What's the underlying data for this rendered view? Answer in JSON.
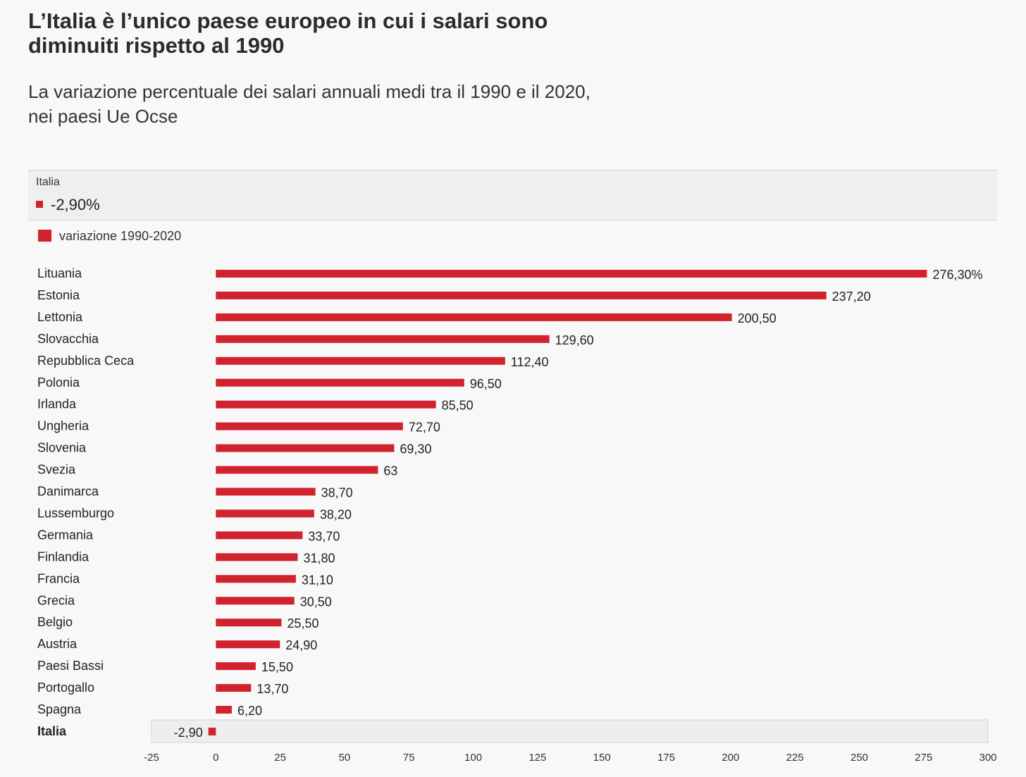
{
  "title": "L’Italia è l’unico paese europeo in cui i salari sono diminuiti rispetto al 1990",
  "subtitle": "La variazione percentuale dei salari annuali medi tra il 1990 e il 2020, nei paesi Ue Ocse",
  "tooltip": {
    "label": "Italia",
    "value": "-2,90%"
  },
  "legend": {
    "label": "variazione 1990-2020"
  },
  "colors": {
    "bar": "#d0232d",
    "background": "#f8f8f8",
    "highlight_band": "#eeeeee"
  },
  "chart_data": {
    "type": "bar",
    "orientation": "horizontal",
    "categories": [
      "Lituania",
      "Estonia",
      "Lettonia",
      "Slovacchia",
      "Repubblica Ceca",
      "Polonia",
      "Irlanda",
      "Ungheria",
      "Slovenia",
      "Svezia",
      "Danimarca",
      "Lussemburgo",
      "Germania",
      "Finlandia",
      "Francia",
      "Grecia",
      "Belgio",
      "Austria",
      "Paesi Bassi",
      "Portogallo",
      "Spagna",
      "Italia"
    ],
    "values": [
      276.3,
      237.2,
      200.5,
      129.6,
      112.4,
      96.5,
      85.5,
      72.7,
      69.3,
      63,
      38.7,
      38.2,
      33.7,
      31.8,
      31.1,
      30.5,
      25.5,
      24.9,
      15.5,
      13.7,
      6.2,
      -2.9
    ],
    "value_labels": [
      "276,30%",
      "237,20",
      "200,50",
      "129,60",
      "112,40",
      "96,50",
      "85,50",
      "72,70",
      "69,30",
      "63",
      "38,70",
      "38,20",
      "33,70",
      "31,80",
      "31,10",
      "30,50",
      "25,50",
      "24,90",
      "15,50",
      "13,70",
      "6,20",
      "-2,90"
    ],
    "highlight": "Italia",
    "xlim": [
      -25,
      300
    ],
    "xticks": [
      -25,
      0,
      25,
      50,
      75,
      100,
      125,
      150,
      175,
      200,
      225,
      250,
      275,
      300
    ],
    "xtick_labels": [
      "-25",
      "0",
      "25",
      "50",
      "75",
      "100",
      "125",
      "150",
      "175",
      "200",
      "225",
      "250",
      "275",
      "300"
    ],
    "series": [
      {
        "name": "variazione 1990-2020"
      }
    ]
  }
}
